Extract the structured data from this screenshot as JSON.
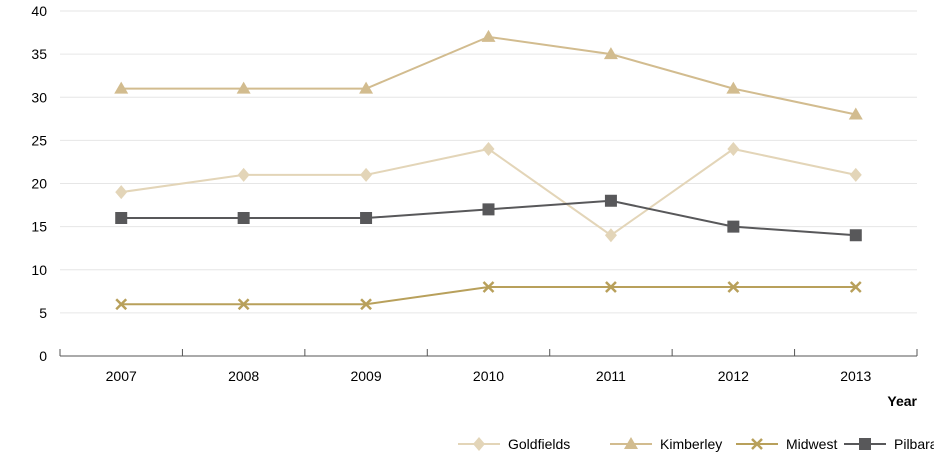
{
  "chart_data": {
    "type": "line",
    "title": "",
    "xlabel": "Year",
    "ylabel": "",
    "categories": [
      "2007",
      "2008",
      "2009",
      "2010",
      "2011",
      "2012",
      "2013"
    ],
    "ylim": [
      0,
      40
    ],
    "yticks": [
      0,
      5,
      10,
      15,
      20,
      25,
      30,
      35,
      40
    ],
    "grid": "horizontal",
    "legend_position": "bottom-right",
    "series": [
      {
        "name": "Goldfields",
        "marker": "diamond",
        "color": "#e3d5b8",
        "values": [
          19,
          21,
          21,
          24,
          14,
          24,
          21
        ]
      },
      {
        "name": "Kimberley",
        "marker": "triangle",
        "color": "#d2bc8f",
        "values": [
          31,
          31,
          31,
          37,
          35,
          31,
          28
        ]
      },
      {
        "name": "Midwest",
        "marker": "x",
        "color": "#b8a05b",
        "values": [
          6,
          6,
          6,
          8,
          8,
          8,
          8
        ]
      },
      {
        "name": "Pilbara",
        "marker": "square",
        "color": "#58585a",
        "values": [
          16,
          16,
          16,
          17,
          18,
          15,
          14
        ]
      }
    ]
  }
}
